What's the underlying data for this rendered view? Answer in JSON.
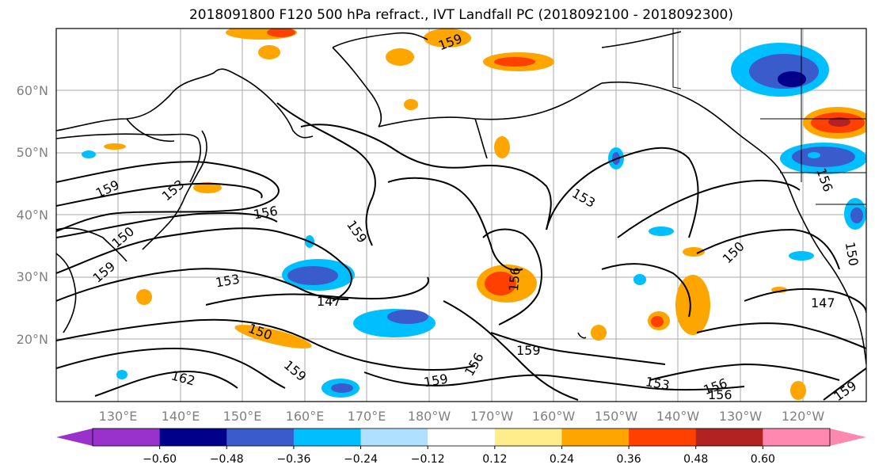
{
  "title": "2018091800 F120 500 hPa refract., IVT Landfall PC (2018092100 - 2018092300)",
  "lon_labels": [
    "130°E",
    "140°E",
    "150°E",
    "160°E",
    "170°E",
    "180°W",
    "170°W",
    "160°W",
    "150°W",
    "140°W",
    "130°W",
    "120°W"
  ],
  "lat_labels": [
    "60°N",
    "50°N",
    "40°N",
    "30°N",
    "20°N"
  ],
  "colorbar": {
    "colors": [
      "#9932cc",
      "#00008b",
      "#3a5bcc",
      "#00bfff",
      "#b0e0ff",
      "#ffffff",
      "#ffec8b",
      "#ffa500",
      "#ff4000",
      "#b22222",
      "#ff88b0"
    ],
    "labels": [
      "−0.60",
      "−0.48",
      "−0.36",
      "−0.24",
      "−0.12",
      "0.12",
      "0.24",
      "0.36",
      "0.48",
      "0.60"
    ]
  },
  "contour_labels": [
    "159",
    "153",
    "156",
    "159",
    "150",
    "153",
    "147",
    "150",
    "159",
    "162",
    "159",
    "156",
    "159",
    "153",
    "156",
    "150",
    "147",
    "150",
    "153",
    "156",
    "156",
    "159",
    "159",
    "156",
    "159"
  ]
}
